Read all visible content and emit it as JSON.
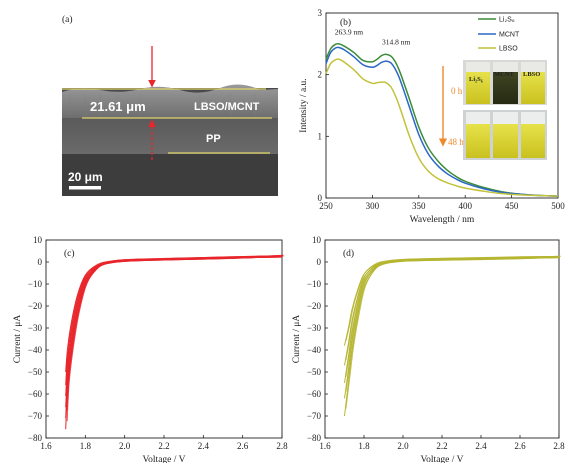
{
  "panel_a": {
    "label": "(a)",
    "thickness_label": "21.61 μm",
    "layer_label": "LBSO/MCNT",
    "pp_label": "PP",
    "scale_label": "20 μm",
    "colors": {
      "arrow": "#e8262b",
      "line": "#e0d36a"
    }
  },
  "panel_b_inset": {
    "vials": [
      "Li₂S₆",
      "MCNT",
      "LBSO"
    ],
    "time_start": "0 h",
    "time_end": "48 h",
    "colors": {
      "arrow": "#f0892d"
    }
  },
  "chart_data": [
    {
      "panel": "(b)",
      "type": "line",
      "xlabel": "Wavelength / nm",
      "ylabel": "Intensity / a.u.",
      "xlim": [
        250,
        500
      ],
      "ylim": [
        0,
        3
      ],
      "xticks": [
        250,
        300,
        350,
        400,
        450,
        500
      ],
      "yticks": [
        0,
        1,
        2,
        3
      ],
      "legend_position": "top-right",
      "annotations": [
        {
          "text": "263.9 nm",
          "x": 263.9,
          "y": 2.52
        },
        {
          "text": "314.8 nm",
          "x": 314.8,
          "y": 2.36
        }
      ],
      "series": [
        {
          "name": "Li₂S₆",
          "color": "#3c8c3a",
          "x": [
            250,
            255,
            260,
            263.9,
            270,
            280,
            290,
            300,
            305,
            310,
            314.8,
            320,
            325,
            330,
            340,
            350,
            360,
            370,
            380,
            390,
            400,
            420,
            440,
            460,
            480,
            500
          ],
          "y": [
            2.25,
            2.42,
            2.49,
            2.5,
            2.46,
            2.36,
            2.23,
            2.21,
            2.25,
            2.31,
            2.33,
            2.3,
            2.2,
            2.03,
            1.6,
            1.15,
            0.82,
            0.61,
            0.46,
            0.35,
            0.27,
            0.17,
            0.1,
            0.06,
            0.04,
            0.03
          ]
        },
        {
          "name": "MCNT",
          "color": "#2b68c6",
          "x": [
            250,
            255,
            260,
            263.9,
            270,
            280,
            290,
            300,
            305,
            310,
            314.8,
            320,
            325,
            330,
            340,
            350,
            360,
            370,
            380,
            390,
            400,
            420,
            440,
            460,
            480,
            500
          ],
          "y": [
            2.18,
            2.36,
            2.43,
            2.44,
            2.4,
            2.29,
            2.16,
            2.12,
            2.15,
            2.2,
            2.22,
            2.19,
            2.08,
            1.91,
            1.47,
            1.03,
            0.72,
            0.53,
            0.4,
            0.31,
            0.24,
            0.15,
            0.09,
            0.06,
            0.04,
            0.03
          ]
        },
        {
          "name": "LBSO",
          "color": "#c2c23b",
          "x": [
            250,
            255,
            260,
            263.9,
            270,
            280,
            290,
            300,
            305,
            310,
            314.8,
            320,
            325,
            330,
            340,
            350,
            360,
            370,
            380,
            390,
            400,
            420,
            440,
            460,
            480,
            500
          ],
          "y": [
            2.02,
            2.18,
            2.24,
            2.25,
            2.2,
            2.08,
            1.93,
            1.86,
            1.87,
            1.88,
            1.87,
            1.8,
            1.65,
            1.45,
            1.0,
            0.65,
            0.44,
            0.32,
            0.25,
            0.2,
            0.16,
            0.11,
            0.07,
            0.05,
            0.04,
            0.03
          ]
        }
      ]
    },
    {
      "panel": "(c)",
      "type": "line",
      "xlabel": "Voltage / V",
      "ylabel": "Current / μA",
      "xlim": [
        1.6,
        2.8
      ],
      "ylim": [
        -80,
        10
      ],
      "xticks": [
        1.6,
        1.8,
        2.0,
        2.2,
        2.4,
        2.6,
        2.8
      ],
      "yticks": [
        10,
        0,
        -10,
        -20,
        -30,
        -40,
        -50,
        -60,
        -70,
        -80
      ],
      "color": "#e8262b",
      "cycles": [
        {
          "x": [
            1.7,
            1.71,
            1.73,
            1.76,
            1.8,
            1.85,
            1.9,
            2.0,
            2.2,
            2.4,
            2.6,
            2.8
          ],
          "y": [
            -76,
            -58,
            -42,
            -25,
            -11,
            -4,
            -1,
            0.3,
            0.9,
            1.3,
            1.8,
            2.6
          ]
        },
        {
          "x": [
            1.7,
            1.71,
            1.73,
            1.76,
            1.8,
            1.85,
            1.9,
            2.0,
            2.2,
            2.4,
            2.6,
            2.8
          ],
          "y": [
            -71,
            -55,
            -39,
            -23,
            -10,
            -3.6,
            -0.9,
            0.3,
            0.9,
            1.3,
            1.8,
            2.5
          ]
        },
        {
          "x": [
            1.7,
            1.71,
            1.73,
            1.76,
            1.8,
            1.85,
            1.9,
            2.0,
            2.2,
            2.4,
            2.6,
            2.8
          ],
          "y": [
            -66,
            -51,
            -36,
            -21,
            -9,
            -3.2,
            -0.8,
            0.4,
            1.0,
            1.4,
            1.9,
            2.4
          ]
        },
        {
          "x": [
            1.7,
            1.71,
            1.73,
            1.76,
            1.8,
            1.85,
            1.9,
            2.0,
            2.2,
            2.4,
            2.6,
            2.8
          ],
          "y": [
            -61,
            -47,
            -33,
            -19,
            -8,
            -2.8,
            -0.7,
            0.4,
            1.0,
            1.4,
            1.9,
            2.3
          ]
        },
        {
          "x": [
            1.7,
            1.71,
            1.73,
            1.76,
            1.8,
            1.85,
            1.9,
            2.0,
            2.2,
            2.4,
            2.6,
            2.8
          ],
          "y": [
            -56,
            -43,
            -30,
            -17,
            -7,
            -2.4,
            -0.6,
            0.5,
            1.0,
            1.5,
            2.0,
            2.3
          ]
        },
        {
          "x": [
            1.7,
            1.71,
            1.73,
            1.76,
            1.8,
            1.85,
            1.9,
            2.0,
            2.2,
            2.4,
            2.6,
            2.8
          ],
          "y": [
            -50,
            -39,
            -27,
            -15,
            -6,
            -2,
            -0.5,
            0.5,
            1.1,
            1.5,
            2.0,
            2.2
          ]
        }
      ]
    },
    {
      "panel": "(d)",
      "type": "line",
      "xlabel": "Voltage / V",
      "ylabel": "Current / μA",
      "xlim": [
        1.6,
        2.8
      ],
      "ylim": [
        -80,
        10
      ],
      "xticks": [
        1.6,
        1.8,
        2.0,
        2.2,
        2.4,
        2.6,
        2.8
      ],
      "yticks": [
        10,
        0,
        -10,
        -20,
        -30,
        -40,
        -50,
        -60,
        -70,
        -80
      ],
      "color": "#b5b531",
      "cycles": [
        {
          "x": [
            1.7,
            1.72,
            1.74,
            1.77,
            1.8,
            1.85,
            1.9,
            2.0,
            2.2,
            2.4,
            2.6,
            2.8
          ],
          "y": [
            -70,
            -55,
            -40,
            -24,
            -12,
            -4,
            -1,
            0.3,
            0.8,
            1.1,
            1.5,
            2.1
          ]
        },
        {
          "x": [
            1.7,
            1.72,
            1.74,
            1.77,
            1.8,
            1.85,
            1.9,
            2.0,
            2.2,
            2.4,
            2.6,
            2.8
          ],
          "y": [
            -62,
            -49,
            -35,
            -21,
            -10,
            -3.4,
            -0.8,
            0.4,
            0.9,
            1.2,
            1.6,
            2.1
          ]
        },
        {
          "x": [
            1.7,
            1.72,
            1.74,
            1.77,
            1.8,
            1.85,
            1.9,
            2.0,
            2.2,
            2.4,
            2.6,
            2.8
          ],
          "y": [
            -55,
            -43,
            -31,
            -18,
            -8.5,
            -2.8,
            -0.6,
            0.5,
            1.0,
            1.3,
            1.7,
            2.0
          ]
        },
        {
          "x": [
            1.7,
            1.72,
            1.74,
            1.77,
            1.8,
            1.85,
            1.9,
            2.0,
            2.2,
            2.4,
            2.6,
            2.8
          ],
          "y": [
            -47,
            -37,
            -26,
            -15,
            -7,
            -2.2,
            -0.4,
            0.6,
            1.1,
            1.4,
            1.8,
            2.0
          ]
        },
        {
          "x": [
            1.7,
            1.72,
            1.74,
            1.77,
            1.8,
            1.85,
            1.9,
            2.0,
            2.2,
            2.4,
            2.6,
            2.8
          ],
          "y": [
            -38,
            -30,
            -21,
            -12,
            -5.5,
            -1.6,
            -0.2,
            0.7,
            1.2,
            1.5,
            1.9,
            2.0
          ]
        }
      ]
    }
  ]
}
